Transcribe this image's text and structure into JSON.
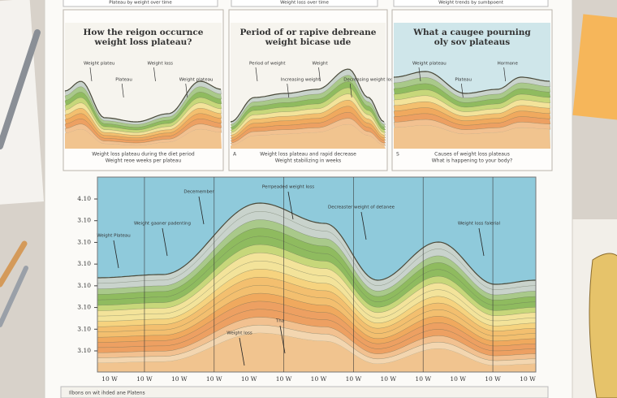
{
  "header": {
    "strips": [
      "Plateau by weight over time",
      "Weight loss over time",
      "Weight trends by sumbpoent"
    ]
  },
  "panels": [
    {
      "title": [
        "How the reigon occurnce",
        "weight loss plateau?"
      ],
      "marker": "",
      "notes": [
        "Weight plateu",
        "Plateau",
        "Weight loss",
        "Weight plateau"
      ],
      "caption": [
        "Weight loss plateau during the diet period",
        "Weight reoe weeks per plateau"
      ]
    },
    {
      "title": [
        "Period of or rapive debreane",
        "weight bicase ude"
      ],
      "marker": "A",
      "notes": [
        "Period of weight",
        "Increasing weight",
        "Weight",
        "Decreasing weight loss"
      ],
      "caption": [
        "Weight loss plateau and rapid decrease",
        "Weight stabilizing in weeks"
      ]
    },
    {
      "title": [
        "What a caugee pourning",
        "oly sov plateaus"
      ],
      "marker": "S",
      "notes": [
        "Weight plateau",
        "Plateau",
        "Hormone"
      ],
      "caption": [
        "Causes of weight loss plateaus",
        "What is happening to your body?"
      ]
    }
  ],
  "main": {
    "y_labels": [
      "4.10",
      "3.10",
      "3.10",
      "3.10",
      "3.10",
      "3.10",
      "3.10",
      "3.10"
    ],
    "x_labels": [
      "10 W",
      "10 W",
      "10 W",
      "10 W",
      "10 W",
      "10 W",
      "10 W",
      "10 W",
      "10 W",
      "10 W",
      "10 W",
      "10 W",
      "10 W"
    ],
    "annotations": [
      "Decemember",
      "Perrpeaded weight loss",
      "Decreaster weight of detanee",
      "Weight Plateau",
      "Weight gaoner padenting",
      "Weight loss falerial",
      "Tha",
      "Weight loss"
    ]
  },
  "footer": "Ilbons on wit ihded ane Platens"
}
